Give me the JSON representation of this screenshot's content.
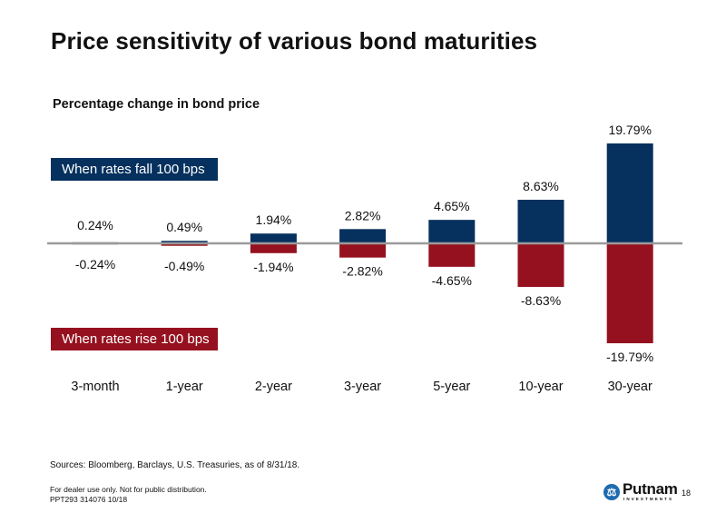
{
  "page": {
    "title": "Price sensitivity of various bond maturities",
    "subtitle": "Percentage change in bond price",
    "sources": "Sources: Bloomberg, Barclays, U.S. Treasuries, as of 8/31/18.",
    "disclaimer_line1": "For dealer use only. Not for public distribution.",
    "disclaimer_line2": "PPT293  314076  10/18",
    "page_number": "18",
    "logo": {
      "name": "Putnam",
      "sub": "INVESTMENTS",
      "icon": "scales-icon"
    }
  },
  "colors": {
    "fall": "#06315e",
    "rise": "#96111f",
    "axis": "#9a9a9a"
  },
  "chart_data": {
    "type": "bar",
    "title": "Price sensitivity of various bond maturities",
    "ylabel": "Percentage change in bond price",
    "xlabel": "",
    "categories": [
      "3-month",
      "1-year",
      "2-year",
      "3-year",
      "5-year",
      "10-year",
      "30-year"
    ],
    "series": [
      {
        "name": "When rates fall 100 bps",
        "values": [
          0.24,
          0.49,
          1.94,
          2.82,
          4.65,
          8.63,
          19.79
        ],
        "labels": [
          "0.24%",
          "0.49%",
          "1.94%",
          "2.82%",
          "4.65%",
          "8.63%",
          "19.79%"
        ]
      },
      {
        "name": "When rates rise 100 bps",
        "values": [
          -0.24,
          -0.49,
          -1.94,
          -2.82,
          -4.65,
          -8.63,
          -19.79
        ],
        "labels": [
          "-0.24%",
          "-0.49%",
          "-1.94%",
          "-2.82%",
          "-4.65%",
          "-8.63%",
          "-19.79%"
        ]
      }
    ],
    "ylim": [
      -19.79,
      19.79
    ],
    "grid": false,
    "legend_placement": "left"
  }
}
